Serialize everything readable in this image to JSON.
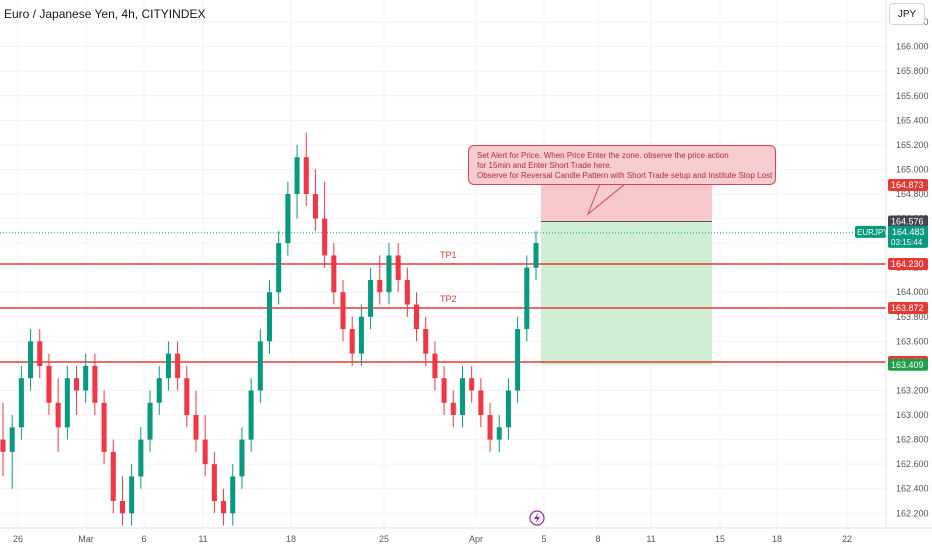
{
  "header": {
    "symbol_title": "Euro / Japanese Yen, 4h, CITYINDEX",
    "currency_button": "JPY"
  },
  "callout": {
    "line1": "Set Alert for Price. When Price Enter the zone. observe the price action",
    "line2": "for 15min and Enter Short Trade here.",
    "line3": "Observe for Reversal Candle Pattern with Short Trade setup and Institute Stop Lost"
  },
  "chart_data": {
    "type": "candlestick",
    "title": "Euro / Japanese Yen, 4h, CITYINDEX",
    "symbol": "EURJPY",
    "timeframe": "4h",
    "currency": "JPY",
    "ylim": [
      162.08,
      166.38
    ],
    "y_ticks": [
      "166.200",
      "166.000",
      "165.800",
      "165.600",
      "165.400",
      "165.200",
      "165.000",
      "164.800",
      "164.600",
      "164.400",
      "164.200",
      "164.000",
      "163.800",
      "163.600",
      "163.400",
      "163.200",
      "163.000",
      "162.800",
      "162.600",
      "162.400",
      "162.200"
    ],
    "x_ticks": [
      "26",
      "Mar",
      "6",
      "11",
      "18",
      "25",
      "Apr",
      "5",
      "8",
      "11",
      "15",
      "18",
      "22"
    ],
    "grid": true,
    "candles": [
      [
        162.8,
        163.1,
        162.5,
        162.7
      ],
      [
        162.7,
        163.0,
        162.4,
        162.9
      ],
      [
        162.9,
        163.4,
        162.8,
        163.3
      ],
      [
        163.3,
        163.7,
        163.2,
        163.6
      ],
      [
        163.6,
        163.7,
        163.3,
        163.4
      ],
      [
        163.4,
        163.5,
        163.0,
        163.1
      ],
      [
        163.1,
        163.3,
        162.7,
        162.9
      ],
      [
        162.9,
        163.4,
        162.8,
        163.3
      ],
      [
        163.3,
        163.4,
        163.0,
        163.2
      ],
      [
        163.2,
        163.5,
        163.1,
        163.4
      ],
      [
        163.4,
        163.5,
        163.0,
        163.1
      ],
      [
        163.1,
        163.2,
        162.6,
        162.7
      ],
      [
        162.7,
        162.8,
        162.2,
        162.3
      ],
      [
        162.3,
        162.5,
        162.1,
        162.2
      ],
      [
        162.2,
        162.6,
        162.1,
        162.5
      ],
      [
        162.5,
        162.9,
        162.4,
        162.8
      ],
      [
        162.8,
        163.2,
        162.7,
        163.1
      ],
      [
        163.1,
        163.4,
        163.0,
        163.3
      ],
      [
        163.3,
        163.6,
        163.2,
        163.5
      ],
      [
        163.5,
        163.6,
        163.2,
        163.3
      ],
      [
        163.3,
        163.4,
        162.9,
        163.0
      ],
      [
        163.0,
        163.2,
        162.7,
        162.8
      ],
      [
        162.8,
        163.0,
        162.5,
        162.6
      ],
      [
        162.6,
        162.7,
        162.2,
        162.3
      ],
      [
        162.3,
        162.4,
        162.1,
        162.2
      ],
      [
        162.2,
        162.6,
        162.1,
        162.5
      ],
      [
        162.5,
        162.9,
        162.4,
        162.8
      ],
      [
        162.8,
        163.3,
        162.7,
        163.2
      ],
      [
        163.2,
        163.7,
        163.1,
        163.6
      ],
      [
        163.6,
        164.1,
        163.5,
        164.0
      ],
      [
        164.0,
        164.5,
        163.9,
        164.4
      ],
      [
        164.4,
        164.9,
        164.3,
        164.8
      ],
      [
        164.8,
        165.2,
        164.6,
        165.1
      ],
      [
        165.1,
        165.3,
        164.7,
        164.8
      ],
      [
        164.8,
        165.0,
        164.5,
        164.6
      ],
      [
        164.6,
        164.9,
        164.2,
        164.3
      ],
      [
        164.3,
        164.4,
        163.9,
        164.0
      ],
      [
        164.0,
        164.1,
        163.6,
        163.7
      ],
      [
        163.7,
        163.8,
        163.4,
        163.5
      ],
      [
        163.5,
        163.9,
        163.4,
        163.8
      ],
      [
        163.8,
        164.2,
        163.7,
        164.1
      ],
      [
        164.1,
        164.3,
        163.9,
        164.0
      ],
      [
        164.0,
        164.4,
        163.9,
        164.3
      ],
      [
        164.3,
        164.4,
        164.0,
        164.1
      ],
      [
        164.1,
        164.2,
        163.8,
        163.9
      ],
      [
        163.9,
        164.0,
        163.6,
        163.7
      ],
      [
        163.7,
        163.8,
        163.4,
        163.5
      ],
      [
        163.5,
        163.6,
        163.2,
        163.3
      ],
      [
        163.3,
        163.4,
        163.0,
        163.1
      ],
      [
        163.1,
        163.2,
        162.9,
        163.0
      ],
      [
        163.0,
        163.4,
        162.9,
        163.3
      ],
      [
        163.3,
        163.4,
        163.1,
        163.2
      ],
      [
        163.2,
        163.3,
        162.9,
        163.0
      ],
      [
        163.0,
        163.1,
        162.7,
        162.8
      ],
      [
        162.8,
        163.0,
        162.7,
        162.9
      ],
      [
        162.9,
        163.3,
        162.8,
        163.2
      ],
      [
        163.2,
        163.8,
        163.1,
        163.7
      ],
      [
        163.7,
        164.3,
        163.6,
        164.2
      ],
      [
        164.2,
        164.5,
        164.1,
        164.4
      ]
    ],
    "current_price_line": 164.483,
    "horizontal_lines": [
      {
        "name": "level-164230",
        "value": 164.23,
        "label": "TP1"
      },
      {
        "name": "level-163872",
        "value": 163.872,
        "label": "TP2"
      },
      {
        "name": "level-163432",
        "value": 163.432,
        "label": ""
      }
    ],
    "zones": {
      "stop_zone": {
        "from": 164.576,
        "to": 164.873,
        "color": "#f8c9cc"
      },
      "target_zone": {
        "from": 163.409,
        "to": 164.576,
        "color": "#cfeed3"
      },
      "entry_line": 164.576
    },
    "price_labels": [
      {
        "text": "164.873",
        "value": 164.873,
        "color": "#e53935"
      },
      {
        "text": "164.576",
        "value": 164.576,
        "color": "#434651"
      },
      {
        "text": "164.230",
        "value": 164.23,
        "color": "#e53935"
      },
      {
        "text": "163.872",
        "value": 163.872,
        "color": "#e53935"
      },
      {
        "text": "163.432",
        "value": 163.432,
        "color": "#e53935"
      },
      {
        "text": "163.409",
        "value": 163.409,
        "color": "#1e9e48"
      }
    ],
    "symbol_badge": {
      "symbol": "EURJPY",
      "price": "164.483",
      "countdown": "03:15:44",
      "color": "#089981"
    },
    "colors": {
      "up": "#089981",
      "down": "#f23645",
      "level": "#e53935",
      "grid": "#f0f3fa"
    }
  }
}
